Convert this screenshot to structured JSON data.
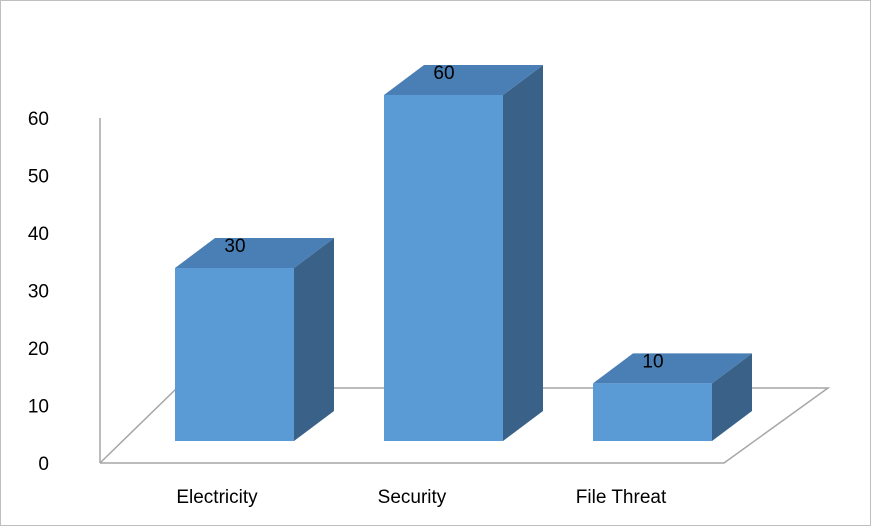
{
  "chart_data": {
    "type": "bar",
    "title": "",
    "xlabel": "",
    "ylabel": "",
    "categories": [
      "Electricity",
      "Security",
      "File Threat"
    ],
    "values": [
      30,
      60,
      10
    ],
    "ylim": [
      0,
      60
    ],
    "yticks": [
      "0",
      "10",
      "20",
      "30",
      "40",
      "50",
      "60"
    ],
    "data_labels": [
      "30",
      "60",
      "10"
    ],
    "style": "3d-column",
    "grid": false,
    "legend": "none",
    "colors": {
      "bar_front": "#5b9bd5",
      "bar_side": "#3a6288",
      "bar_top": "#4a7fb5",
      "floor_stroke": "#a6a6a6"
    }
  }
}
